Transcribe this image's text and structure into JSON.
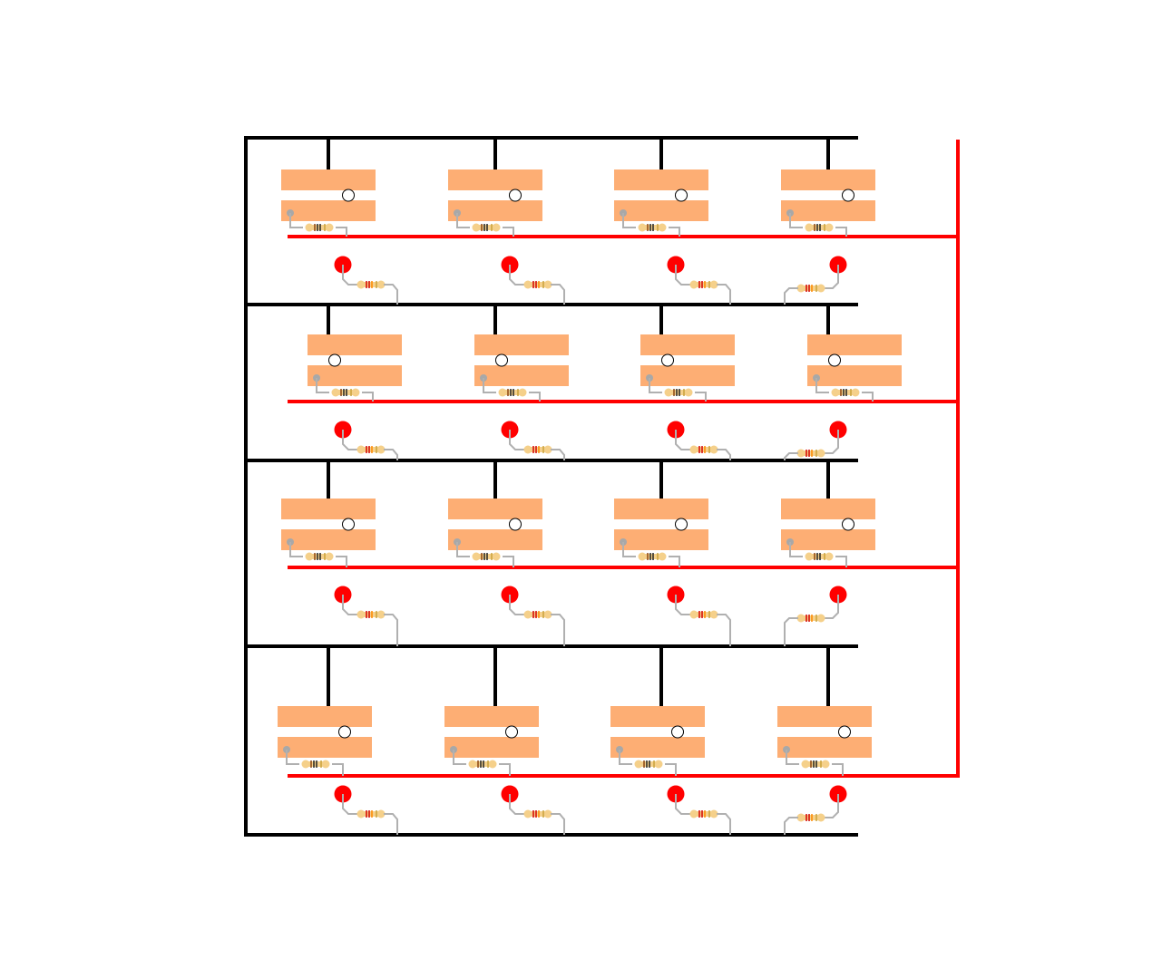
{
  "diagram": {
    "grid_rows": 4,
    "grid_cols": 4,
    "cell_types": [
      "switch",
      "switch-pulldown-resistor",
      "led",
      "led-series-resistor"
    ],
    "colors": {
      "background": "#ffffff",
      "ground_bus": "#000000",
      "power_bus": "#ff0000",
      "switch_plate": "#fdae74",
      "led": "#ff0000",
      "jumper_wire": "#b0b0b0",
      "contact_pin": "#a8a8a8",
      "resistor_body": "#f5d08a",
      "resistor_band_dark": "#222222",
      "resistor_band_brown": "#8b4513",
      "resistor_band_red": "#d40000",
      "resistor_band_orange": "#ff8800",
      "resistor_band_gold": "#c9a13a"
    }
  }
}
